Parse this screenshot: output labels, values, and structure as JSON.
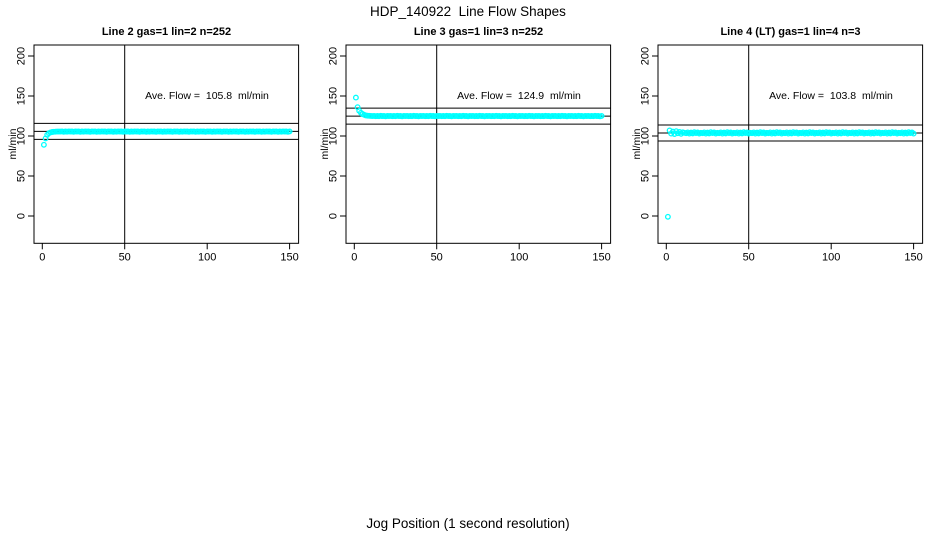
{
  "page": {
    "main_title": "HDP_140922  Line Flow Shapes",
    "x_axis_label": "Jog Position (1 second resolution)",
    "colors": {
      "points": "#00ffff",
      "lines": "#000000",
      "text": "#000000",
      "background": "#ffffff"
    }
  },
  "chart_data": [
    {
      "type": "scatter",
      "title": "Line 2 gas=1 lin=2 n=252",
      "annotation": "Ave. Flow =  105.8  ml/min",
      "ave_flow": 105.8,
      "ylabel": "ml/min",
      "x_ticks": [
        0,
        50,
        100,
        150
      ],
      "y_ticks": [
        0,
        50,
        100,
        150,
        200
      ],
      "x_range": [
        0,
        150
      ],
      "y_range": [
        0,
        200
      ],
      "ref_lines": {
        "h_mean": 105.8,
        "h_upper": 115.8,
        "h_lower": 95.8,
        "v": 50
      },
      "x_start": 1,
      "x_step": 1,
      "y": [
        89,
        97,
        101.5,
        103.5,
        104.5,
        105,
        105.2,
        105.4,
        105.5,
        105.5,
        105.5,
        105.7,
        105.3,
        105.6,
        105.4,
        105.8,
        105.5,
        105.6,
        105.3,
        105.7,
        105.5,
        105.7,
        105.3,
        105.6,
        105.4,
        105.8,
        105.5,
        105.6,
        105.3,
        105.7,
        105.5,
        105.7,
        105.3,
        105.6,
        105.4,
        105.8,
        105.5,
        105.6,
        105.3,
        105.7,
        105.5,
        105.7,
        105.3,
        105.6,
        105.4,
        105.8,
        105.5,
        105.6,
        105.3,
        105.7,
        105.5,
        105.7,
        105.3,
        105.6,
        105.4,
        105.8,
        105.5,
        105.6,
        105.3,
        105.7,
        105.5,
        105.7,
        105.3,
        105.6,
        105.4,
        105.8,
        105.5,
        105.6,
        105.3,
        105.7,
        105.5,
        105.7,
        105.3,
        105.6,
        105.4,
        105.8,
        105.5,
        105.6,
        105.3,
        105.7,
        105.5,
        105.7,
        105.3,
        105.6,
        105.4,
        105.8,
        105.5,
        105.6,
        105.3,
        105.7,
        105.5,
        105.7,
        105.3,
        105.6,
        105.4,
        105.8,
        105.5,
        105.6,
        105.3,
        105.7,
        105.5,
        105.7,
        105.3,
        105.6,
        105.4,
        105.8,
        105.5,
        105.6,
        105.3,
        105.7,
        105.5,
        105.7,
        105.3,
        105.6,
        105.4,
        105.8,
        105.5,
        105.6,
        105.3,
        105.7,
        105.5,
        105.7,
        105.3,
        105.6,
        105.4,
        105.8,
        105.5,
        105.6,
        105.3,
        105.7,
        105.5,
        105.7,
        105.3,
        105.6,
        105.4,
        105.8,
        105.5,
        105.6,
        105.3,
        105.7,
        105.5,
        105.7,
        105.3,
        105.6,
        105.4,
        105.8,
        105.5,
        105.6,
        105.3,
        105.7
      ]
    },
    {
      "type": "scatter",
      "title": "Line 3 gas=1 lin=3 n=252",
      "annotation": "Ave. Flow =  124.9  ml/min",
      "ave_flow": 124.9,
      "ylabel": "ml/min",
      "x_ticks": [
        0,
        50,
        100,
        150
      ],
      "y_ticks": [
        0,
        50,
        100,
        150,
        200
      ],
      "x_range": [
        0,
        150
      ],
      "y_range": [
        0,
        200
      ],
      "ref_lines": {
        "h_mean": 124.9,
        "h_upper": 134.9,
        "h_lower": 114.9,
        "v": 50
      },
      "x_start": 1,
      "x_step": 1,
      "y": [
        148,
        136,
        131.5,
        129,
        127.5,
        126.5,
        125.8,
        125.4,
        125.2,
        125.1,
        124.9,
        125.1,
        124.7,
        125,
        124.8,
        125.2,
        124.9,
        125,
        124.6,
        125.1,
        124.9,
        125.1,
        124.7,
        125,
        124.8,
        125.2,
        124.9,
        125,
        124.6,
        125.1,
        124.9,
        125.1,
        124.7,
        125,
        124.8,
        125.2,
        124.9,
        125,
        124.6,
        125.1,
        124.9,
        125.1,
        124.7,
        125,
        124.8,
        125.2,
        124.9,
        125,
        124.6,
        125.1,
        124.9,
        125.1,
        124.7,
        125,
        124.8,
        125.2,
        124.9,
        125,
        124.6,
        125.1,
        124.9,
        125.1,
        124.7,
        125,
        124.8,
        125.2,
        124.9,
        125,
        124.6,
        125.1,
        124.9,
        125.1,
        124.7,
        125,
        124.8,
        125.2,
        124.9,
        125,
        124.6,
        125.1,
        124.9,
        125.1,
        124.7,
        125,
        124.8,
        125.2,
        124.9,
        125,
        124.6,
        125.1,
        124.9,
        125.1,
        124.7,
        125,
        124.8,
        125.2,
        124.9,
        125,
        124.6,
        125.1,
        124.9,
        125.1,
        124.7,
        125,
        124.8,
        125.2,
        124.9,
        125,
        124.6,
        125.1,
        124.9,
        125.1,
        124.7,
        125,
        124.8,
        125.2,
        124.9,
        125,
        124.6,
        125.1,
        124.9,
        125.1,
        124.7,
        125,
        124.8,
        125.2,
        124.9,
        125,
        124.6,
        125.1,
        124.9,
        125.1,
        124.7,
        125,
        124.8,
        125.2,
        124.9,
        125,
        124.6,
        125.1,
        124.9,
        125.1,
        124.7,
        125,
        124.8,
        125.2,
        124.9,
        125,
        124.6,
        125.1
      ]
    },
    {
      "type": "scatter",
      "title": "Line 4 (LT) gas=1 lin=4 n=3",
      "annotation": "Ave. Flow =  103.8  ml/min",
      "ave_flow": 103.8,
      "ylabel": "ml/min",
      "x_ticks": [
        0,
        50,
        100,
        150
      ],
      "y_ticks": [
        0,
        50,
        100,
        150,
        200
      ],
      "x_range": [
        0,
        150
      ],
      "y_range": [
        0,
        200
      ],
      "ref_lines": {
        "h_mean": 103.8,
        "h_upper": 113.8,
        "h_lower": 93.8,
        "v": 50
      },
      "x_start": 1,
      "x_step": 1,
      "y": [
        -1,
        107,
        103,
        105.5,
        102.5,
        106,
        103.5,
        105,
        102.8,
        104.6,
        104,
        103.5,
        104.5,
        103,
        104.2,
        103.3,
        104.8,
        103.6,
        104.4,
        103,
        104,
        103.5,
        104.5,
        103,
        104.2,
        103.3,
        104.8,
        103.6,
        104.4,
        103,
        104,
        103.5,
        104.5,
        103,
        104.2,
        103.3,
        104.8,
        103.6,
        104.4,
        103,
        104,
        103.5,
        104.5,
        103,
        104.2,
        103.3,
        104.8,
        103.6,
        104.4,
        103,
        104,
        103.5,
        104.5,
        103,
        104.2,
        103.3,
        104.8,
        103.6,
        104.4,
        103,
        104,
        103.5,
        104.5,
        103,
        104.2,
        103.3,
        104.8,
        103.6,
        104.4,
        103,
        104,
        103.5,
        104.5,
        103,
        104.2,
        103.3,
        104.8,
        103.6,
        104.4,
        103,
        104,
        103.5,
        104.5,
        103,
        104.2,
        103.3,
        104.8,
        103.6,
        104.4,
        103,
        104,
        103.5,
        104.5,
        103,
        104.2,
        103.3,
        104.8,
        103.6,
        104.4,
        103,
        104,
        103.5,
        104.5,
        103,
        104.2,
        103.3,
        104.8,
        103.6,
        104.4,
        103,
        104,
        103.5,
        104.5,
        103,
        104.2,
        103.3,
        104.8,
        103.6,
        104.4,
        103,
        104,
        103.5,
        104.5,
        103,
        104.2,
        103.3,
        104.8,
        103.6,
        104.4,
        103,
        104,
        103.5,
        104.5,
        103,
        104.2,
        103.3,
        104.8,
        103.6,
        104.4,
        103,
        104,
        103.5,
        104.5,
        103,
        104.2,
        103.3,
        104.8,
        103.6,
        104.4,
        103
      ]
    }
  ]
}
